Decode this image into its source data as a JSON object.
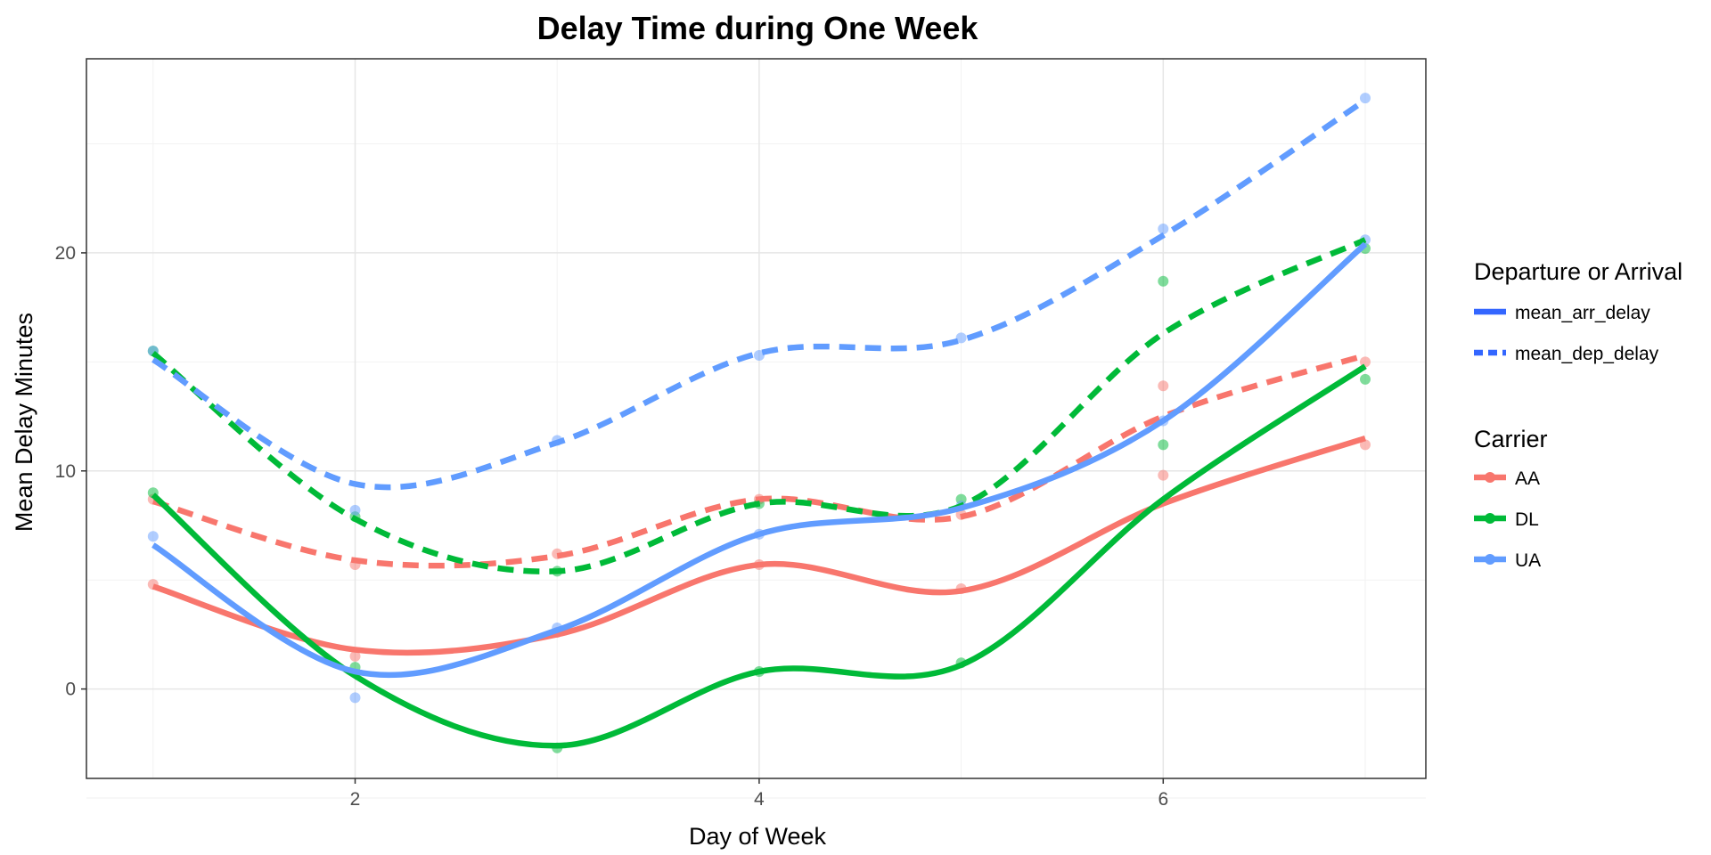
{
  "chart_data": {
    "type": "line",
    "title": "Delay Time during One Week",
    "xlabel": "Day of Week",
    "ylabel": "Mean Delay Minutes",
    "xlim": [
      0.67,
      7.3
    ],
    "ylim": [
      -4.1,
      28.9
    ],
    "x_ticks": [
      2,
      4,
      6
    ],
    "y_ticks": [
      0,
      10,
      20
    ],
    "grid": true,
    "legend_position": "right",
    "x": [
      1,
      2,
      3,
      4,
      5,
      6,
      7
    ],
    "legend_linetype": {
      "title": "Departure or Arrival",
      "entries": [
        {
          "label": "mean_arr_delay",
          "dash": "solid"
        },
        {
          "label": "mean_dep_delay",
          "dash": "dashed"
        }
      ]
    },
    "legend_carrier": {
      "title": "Carrier",
      "entries": [
        {
          "label": "AA",
          "color": "#F8766D"
        },
        {
          "label": "DL",
          "color": "#00BA38"
        },
        {
          "label": "UA",
          "color": "#619CFF"
        }
      ]
    },
    "series": [
      {
        "carrier": "AA",
        "measure": "mean_arr_delay",
        "color": "#F8766D",
        "points": [
          4.8,
          1.5,
          2.6,
          5.7,
          4.6,
          9.8,
          11.2
        ],
        "smooth": [
          4.7,
          1.8,
          2.5,
          5.7,
          4.5,
          8.5,
          11.5
        ]
      },
      {
        "carrier": "AA",
        "measure": "mean_dep_delay",
        "color": "#F8766D",
        "points": [
          8.7,
          5.7,
          6.2,
          8.7,
          8.0,
          13.9,
          15.0
        ],
        "smooth": [
          8.6,
          5.9,
          6.1,
          8.7,
          7.9,
          12.5,
          15.3
        ]
      },
      {
        "carrier": "DL",
        "measure": "mean_arr_delay",
        "color": "#00BA38",
        "points": [
          9.0,
          1.0,
          -2.7,
          0.8,
          1.2,
          11.2,
          14.2
        ],
        "smooth": [
          8.9,
          0.6,
          -2.6,
          0.8,
          1.1,
          8.7,
          14.8
        ]
      },
      {
        "carrier": "DL",
        "measure": "mean_dep_delay",
        "color": "#00BA38",
        "points": [
          15.5,
          7.9,
          5.4,
          8.5,
          8.7,
          18.7,
          20.2
        ],
        "smooth": [
          15.4,
          7.8,
          5.4,
          8.5,
          8.4,
          16.3,
          20.6
        ]
      },
      {
        "carrier": "UA",
        "measure": "mean_arr_delay",
        "color": "#619CFF",
        "points": [
          7.0,
          -0.4,
          2.8,
          7.1,
          8.4,
          12.3,
          20.6
        ],
        "smooth": [
          6.6,
          0.8,
          2.7,
          7.1,
          8.3,
          12.3,
          20.4
        ]
      },
      {
        "carrier": "UA",
        "measure": "mean_dep_delay",
        "color": "#619CFF",
        "points": [
          15.5,
          8.2,
          11.4,
          15.3,
          16.1,
          21.1,
          27.1
        ],
        "smooth": [
          15.1,
          9.4,
          11.3,
          15.4,
          16.0,
          20.8,
          27.0
        ]
      }
    ]
  }
}
